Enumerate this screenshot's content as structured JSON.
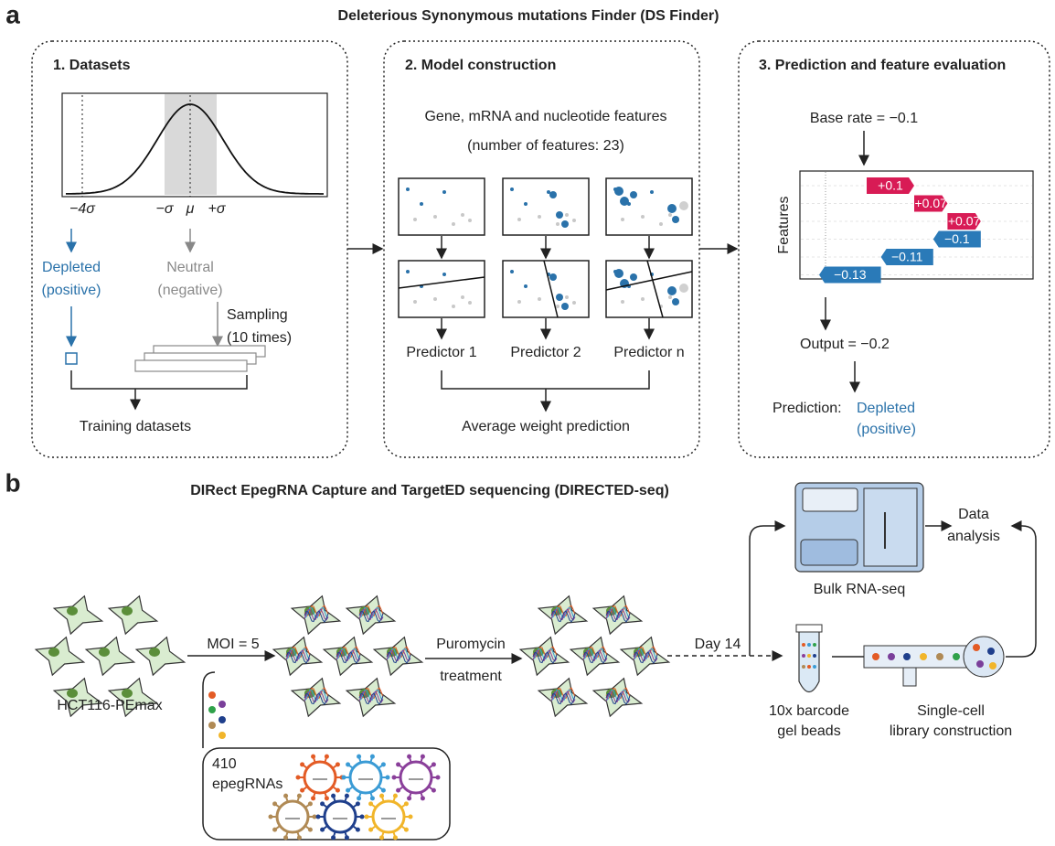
{
  "panel_a": {
    "label": "a",
    "title": "Deleterious Synonymous mutations Finder (DS Finder)",
    "datasets": {
      "heading": "1. Datasets",
      "axis_labels": [
        "−4σ",
        "−σ",
        "μ",
        "+σ"
      ],
      "depleted": [
        "Depleted",
        "(positive)"
      ],
      "neutral": [
        "Neutral",
        "(negative)"
      ],
      "sampling": [
        "Sampling",
        "(10 times)"
      ],
      "output": "Training datasets"
    },
    "model": {
      "heading": "2. Model construction",
      "features": [
        "Gene, mRNA and nucleotide features",
        "(number of features: 23)"
      ],
      "predictors": [
        "Predictor 1",
        "Predictor 2",
        "Predictor n"
      ],
      "output": "Average weight prediction"
    },
    "evaluation": {
      "heading": "3. Prediction and feature evaluation",
      "base_rate": "Base rate = −0.1",
      "axis_label": "Features",
      "contributions": {
        "values": [
          0.1,
          0.07,
          0.07,
          -0.1,
          -0.11,
          -0.13
        ],
        "value_labels": [
          "+0.1",
          "+0.07",
          "+0.07",
          "−0.1",
          "−0.11",
          "−0.13"
        ]
      },
      "output": "Output = −0.2",
      "prediction_label": "Prediction:",
      "prediction": [
        "Depleted",
        "(positive)"
      ]
    }
  },
  "panel_b": {
    "label": "b",
    "title": "DIRect EpegRNA Capture and TargetED sequencing (DIRECTED-seq)",
    "cells": "HCT116-PEmax",
    "moi": "MOI = 5",
    "selection": [
      "Puromycin",
      "treatment"
    ],
    "time": "Day 14",
    "library": [
      "410",
      "epegRNAs"
    ],
    "bulk": "Bulk RNA-seq",
    "analysis": [
      "Data",
      "analysis"
    ],
    "beads": [
      "10x barcode",
      "gel beads"
    ],
    "single_cell": [
      "Single-cell",
      "library construction"
    ]
  }
}
